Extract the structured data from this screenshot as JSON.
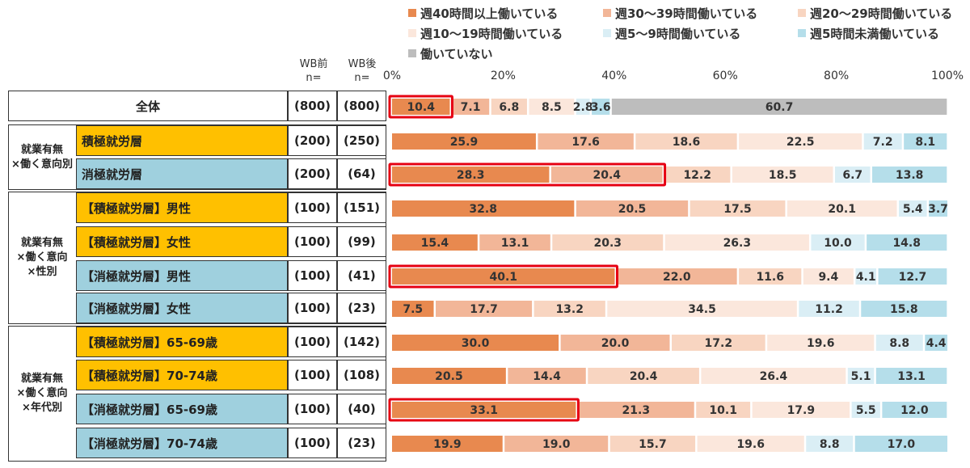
{
  "chart_data": {
    "type": "bar",
    "stacked": true,
    "orientation": "horizontal",
    "xlim": [
      0,
      100
    ],
    "x_ticks": [
      "0%",
      "20%",
      "40%",
      "60%",
      "80%",
      "100%"
    ],
    "header": {
      "before_label": "WB前",
      "after_label": "WB後",
      "n_label": "n="
    },
    "series": [
      {
        "name": "週40時間以上働いている",
        "color": "#E8894F"
      },
      {
        "name": "週30〜39時間働いている",
        "color": "#F2B698"
      },
      {
        "name": "週20〜29時間働いている",
        "color": "#F8D5C1"
      },
      {
        "name": "週10〜19時間働いている",
        "color": "#FBE7DC"
      },
      {
        "name": "週5〜9時間働いている",
        "color": "#DAEEF5"
      },
      {
        "name": "週5時間未満働いている",
        "color": "#B5DEEA"
      },
      {
        "name": "働いていない",
        "color": "#BDBDBD"
      }
    ],
    "groups": [
      {
        "label": "",
        "rows": [
          0
        ]
      },
      {
        "label": "就業有無\n×働く意向別",
        "rows": [
          1,
          2
        ]
      },
      {
        "label": "就業有無\n×働く意向\n×性別",
        "rows": [
          3,
          4,
          5,
          6
        ]
      },
      {
        "label": "就業有無\n×働く意向\n×年代別",
        "rows": [
          7,
          8,
          9,
          10
        ]
      }
    ],
    "rows": [
      {
        "label": "全体",
        "type": "total",
        "n_before": "(800)",
        "n_after": "(800)",
        "values": [
          10.4,
          7.1,
          6.8,
          8.5,
          2.8,
          3.6,
          60.7
        ],
        "highlight": [
          0,
          0
        ]
      },
      {
        "label": "積極就労層",
        "type": "active",
        "n_before": "(200)",
        "n_after": "(250)",
        "values": [
          25.9,
          17.6,
          18.6,
          22.5,
          7.2,
          8.1,
          0
        ]
      },
      {
        "label": "消極就労層",
        "type": "passive",
        "n_before": "(200)",
        "n_after": "(64)",
        "values": [
          28.3,
          20.4,
          12.2,
          18.5,
          6.7,
          13.8,
          0
        ],
        "highlight": [
          0,
          1
        ]
      },
      {
        "label": "【積極就労層】男性",
        "type": "active",
        "n_before": "(100)",
        "n_after": "(151)",
        "values": [
          32.8,
          20.5,
          17.5,
          20.1,
          5.4,
          3.7,
          0
        ]
      },
      {
        "label": "【積極就労層】女性",
        "type": "active",
        "n_before": "(100)",
        "n_after": "(99)",
        "values": [
          15.4,
          13.1,
          20.3,
          26.3,
          10.0,
          14.8,
          0
        ]
      },
      {
        "label": "【消極就労層】男性",
        "type": "passive",
        "n_before": "(100)",
        "n_after": "(41)",
        "values": [
          40.1,
          22.0,
          11.6,
          9.4,
          4.1,
          12.7,
          0
        ],
        "highlight": [
          0,
          0
        ]
      },
      {
        "label": "【消極就労層】女性",
        "type": "passive",
        "n_before": "(100)",
        "n_after": "(23)",
        "values": [
          7.5,
          17.7,
          13.2,
          34.5,
          11.2,
          15.8,
          0
        ]
      },
      {
        "label": "【積極就労層】65-69歳",
        "type": "active",
        "n_before": "(100)",
        "n_after": "(142)",
        "values": [
          30.0,
          20.0,
          17.2,
          19.6,
          8.8,
          4.4,
          0
        ]
      },
      {
        "label": "【積極就労層】70-74歳",
        "type": "active",
        "n_before": "(100)",
        "n_after": "(108)",
        "values": [
          20.5,
          14.4,
          20.4,
          26.4,
          5.1,
          13.1,
          0
        ]
      },
      {
        "label": "【消極就労層】65-69歳",
        "type": "passive",
        "n_before": "(100)",
        "n_after": "(40)",
        "values": [
          33.1,
          21.3,
          10.1,
          17.9,
          5.5,
          12.0,
          0
        ],
        "highlight": [
          0,
          0
        ]
      },
      {
        "label": "【消極就労層】70-74歳",
        "type": "passive",
        "n_before": "(100)",
        "n_after": "(23)",
        "values": [
          19.9,
          19.0,
          15.7,
          19.6,
          8.8,
          17.0,
          0
        ]
      }
    ]
  },
  "colors": {
    "active_label_bg": "#FFC000",
    "passive_label_bg": "#9FD0DE",
    "highlight": "#E60012",
    "total_bg": "#ffffff"
  }
}
